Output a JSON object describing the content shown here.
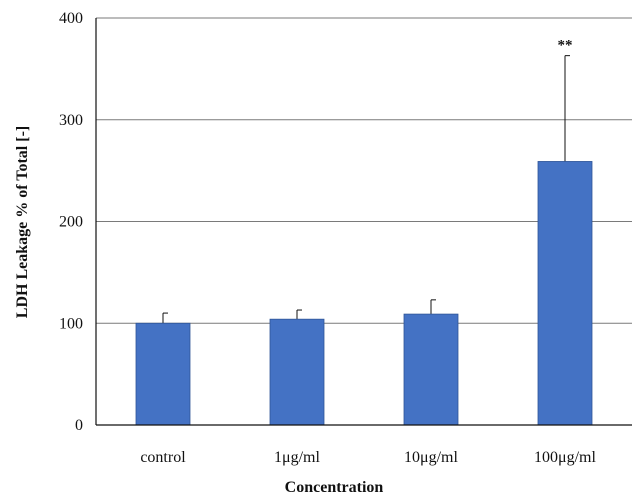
{
  "chart_data": {
    "type": "bar",
    "categories": [
      "control",
      "1μg/ml",
      "10μg/ml",
      "100μg/ml"
    ],
    "values": [
      100,
      104,
      109,
      259
    ],
    "error_upper": [
      110,
      113,
      123,
      363
    ],
    "significance": [
      "",
      "",
      "",
      "**"
    ],
    "title": "",
    "xlabel": "Concentration",
    "ylabel": "LDH Leakage % of Total [-]",
    "ylim": [
      0,
      400
    ],
    "yticks": [
      0,
      100,
      200,
      300,
      400
    ],
    "grid": true,
    "bar_color": "#4472c4",
    "bar_edge_color": "#2f5597",
    "grid_color": "#7a7a7a"
  }
}
